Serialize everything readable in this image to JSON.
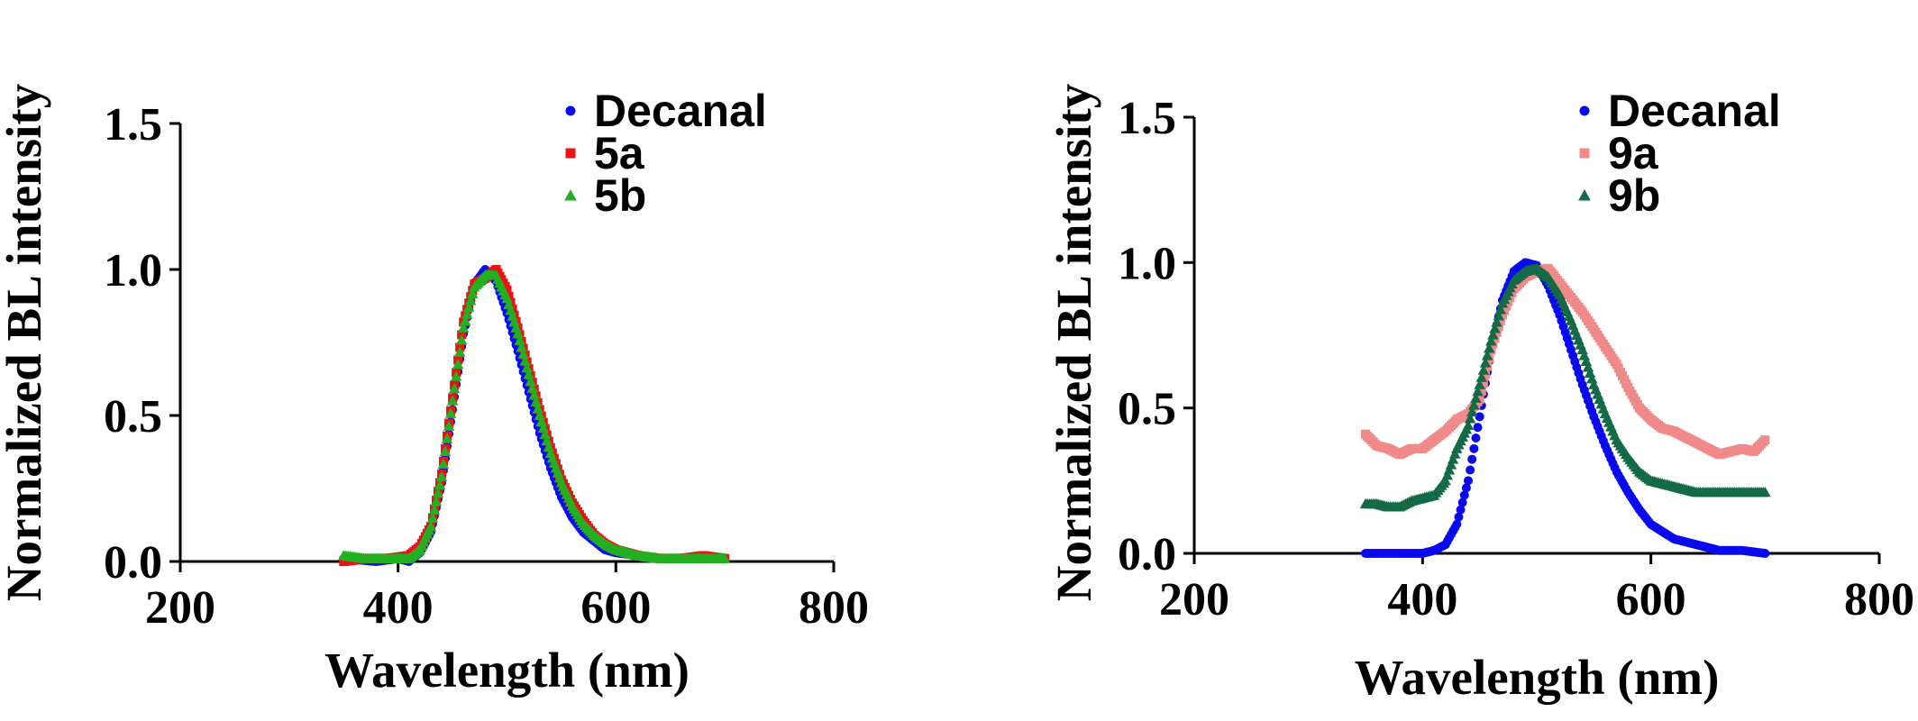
{
  "chart_data": [
    {
      "type": "scatter",
      "title": "",
      "xlabel": "Wavelength (nm)",
      "ylabel": "Normalized BL intensity",
      "xlim": [
        200,
        800
      ],
      "ylim": [
        0,
        1.5
      ],
      "xticks": [
        "200",
        "400",
        "600",
        "800"
      ],
      "yticks": [
        "0.0",
        "0.5",
        "1.0",
        "1.5"
      ],
      "grid": false,
      "legend": "top-right",
      "series": [
        {
          "name": "Decanal",
          "color": "#0a0aee",
          "marker": "circle",
          "x": [
            350,
            380,
            400,
            410,
            420,
            430,
            440,
            450,
            460,
            470,
            480,
            490,
            500,
            510,
            520,
            530,
            540,
            550,
            560,
            570,
            580,
            590,
            600,
            620,
            640,
            660,
            680,
            700
          ],
          "y": [
            0.01,
            0.0,
            0.01,
            0.0,
            0.03,
            0.1,
            0.27,
            0.52,
            0.78,
            0.95,
            1.0,
            0.96,
            0.85,
            0.72,
            0.58,
            0.44,
            0.32,
            0.22,
            0.15,
            0.1,
            0.07,
            0.04,
            0.03,
            0.02,
            0.01,
            0.01,
            0.01,
            0.01
          ]
        },
        {
          "name": "5a",
          "color": "#ee1111",
          "marker": "square",
          "x": [
            350,
            370,
            390,
            410,
            420,
            430,
            440,
            450,
            460,
            470,
            480,
            490,
            500,
            510,
            520,
            530,
            540,
            550,
            560,
            570,
            580,
            590,
            600,
            620,
            640,
            660,
            680,
            700
          ],
          "y": [
            0.0,
            0.01,
            0.01,
            0.02,
            0.05,
            0.12,
            0.3,
            0.56,
            0.82,
            0.95,
            0.97,
            1.0,
            0.93,
            0.8,
            0.66,
            0.52,
            0.39,
            0.28,
            0.2,
            0.14,
            0.09,
            0.06,
            0.04,
            0.02,
            0.01,
            0.01,
            0.02,
            0.01
          ]
        },
        {
          "name": "5b",
          "color": "#22b022",
          "marker": "triangle",
          "x": [
            350,
            370,
            390,
            410,
            420,
            430,
            440,
            450,
            460,
            470,
            480,
            490,
            500,
            510,
            520,
            530,
            540,
            550,
            560,
            570,
            580,
            590,
            600,
            620,
            640,
            660,
            680,
            700
          ],
          "y": [
            0.02,
            0.01,
            0.01,
            0.01,
            0.04,
            0.12,
            0.29,
            0.55,
            0.8,
            0.94,
            0.98,
            0.98,
            0.9,
            0.78,
            0.64,
            0.5,
            0.37,
            0.27,
            0.19,
            0.13,
            0.09,
            0.06,
            0.04,
            0.02,
            0.01,
            0.01,
            0.01,
            0.01
          ]
        }
      ]
    },
    {
      "type": "scatter",
      "title": "",
      "xlabel": "Wavelength (nm)",
      "ylabel": "Normalized BL intensity",
      "xlim": [
        200,
        800
      ],
      "ylim": [
        0,
        1.5
      ],
      "xticks": [
        "200",
        "400",
        "600",
        "800"
      ],
      "yticks": [
        "0.0",
        "0.5",
        "1.0",
        "1.5"
      ],
      "grid": false,
      "legend": "top-right",
      "series": [
        {
          "name": "Decanal",
          "color": "#0a0aee",
          "marker": "circle",
          "x": [
            350,
            380,
            400,
            410,
            420,
            430,
            440,
            450,
            460,
            470,
            480,
            490,
            500,
            510,
            520,
            530,
            540,
            550,
            560,
            570,
            580,
            590,
            600,
            620,
            640,
            660,
            680,
            700
          ],
          "y": [
            0.0,
            0.0,
            0.0,
            0.01,
            0.03,
            0.1,
            0.25,
            0.47,
            0.7,
            0.87,
            0.97,
            1.0,
            0.99,
            0.92,
            0.82,
            0.7,
            0.58,
            0.47,
            0.37,
            0.28,
            0.21,
            0.15,
            0.1,
            0.05,
            0.03,
            0.01,
            0.01,
            0.0
          ]
        },
        {
          "name": "9a",
          "color": "#f08a8a",
          "marker": "square",
          "x": [
            350,
            360,
            370,
            380,
            390,
            400,
            410,
            420,
            430,
            440,
            450,
            460,
            470,
            480,
            490,
            500,
            510,
            520,
            530,
            540,
            550,
            560,
            570,
            580,
            590,
            600,
            610,
            620,
            630,
            640,
            650,
            660,
            670,
            680,
            690,
            700
          ],
          "y": [
            0.41,
            0.37,
            0.36,
            0.34,
            0.36,
            0.36,
            0.39,
            0.42,
            0.46,
            0.48,
            0.53,
            0.7,
            0.82,
            0.91,
            0.95,
            0.97,
            0.98,
            0.93,
            0.88,
            0.83,
            0.77,
            0.71,
            0.65,
            0.57,
            0.5,
            0.46,
            0.43,
            0.42,
            0.4,
            0.38,
            0.36,
            0.34,
            0.35,
            0.36,
            0.35,
            0.39
          ]
        },
        {
          "name": "9b",
          "color": "#146a46",
          "marker": "triangle",
          "x": [
            350,
            360,
            370,
            380,
            390,
            400,
            410,
            420,
            430,
            440,
            450,
            460,
            470,
            480,
            490,
            500,
            510,
            520,
            530,
            540,
            550,
            560,
            570,
            580,
            590,
            600,
            610,
            620,
            630,
            640,
            650,
            660,
            670,
            680,
            690,
            700
          ],
          "y": [
            0.17,
            0.17,
            0.16,
            0.16,
            0.18,
            0.19,
            0.2,
            0.25,
            0.36,
            0.44,
            0.58,
            0.73,
            0.86,
            0.94,
            0.97,
            0.98,
            0.95,
            0.89,
            0.8,
            0.7,
            0.58,
            0.48,
            0.39,
            0.33,
            0.28,
            0.25,
            0.24,
            0.23,
            0.22,
            0.21,
            0.21,
            0.21,
            0.21,
            0.21,
            0.21,
            0.21
          ]
        }
      ]
    }
  ]
}
